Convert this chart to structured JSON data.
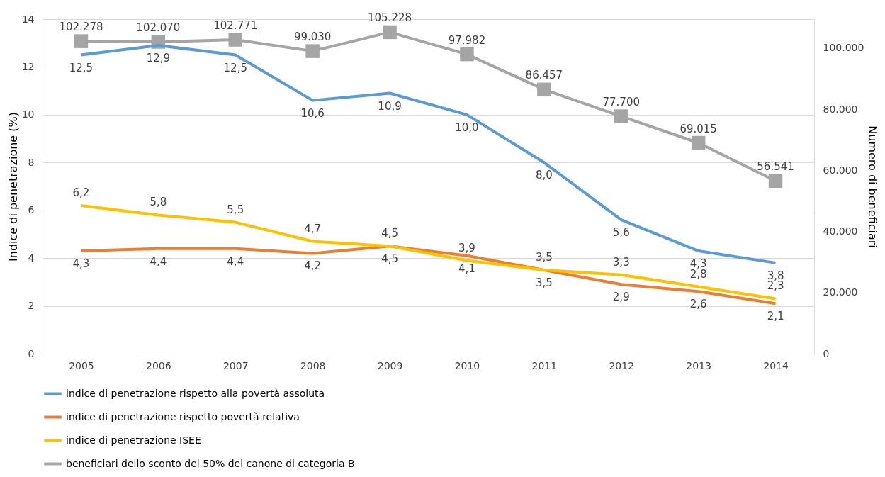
{
  "chart_data": {
    "type": "line",
    "categories": [
      "2005",
      "2006",
      "2007",
      "2008",
      "2009",
      "2010",
      "2011",
      "2012",
      "2013",
      "2014"
    ],
    "ylabel": "Indice di penetrazione (%)",
    "y2label": "Numero di beneficiari",
    "ylim": [
      0,
      14
    ],
    "yticks": [
      0,
      2,
      4,
      6,
      8,
      10,
      12,
      14
    ],
    "y2lim": [
      0,
      109500
    ],
    "y2ticks": [
      {
        "value": 0,
        "label": "0"
      },
      {
        "value": 20000,
        "label": "20.000"
      },
      {
        "value": 40000,
        "label": "40.000"
      },
      {
        "value": 60000,
        "label": "60.000"
      },
      {
        "value": 80000,
        "label": "80.000"
      },
      {
        "value": 100000,
        "label": "100.000"
      }
    ],
    "grid": "y",
    "legend": "bottom left",
    "series": [
      {
        "name": "indice di penetrazione rispetto alla povertà assoluta",
        "color": "#5b9bd5",
        "marker": "none",
        "values": [
          12.5,
          12.9,
          12.5,
          10.6,
          10.9,
          10.0,
          8.0,
          5.6,
          4.3,
          3.8
        ],
        "value_labels": [
          "12,5",
          "12,9",
          "12,5",
          "10,6",
          "10,9",
          "10,0",
          "8,0",
          "5,6",
          "4,3",
          "3,8"
        ]
      },
      {
        "name": "indice di penetrazione rispetto povertà relativa",
        "color": "#ed7d31",
        "marker": "none",
        "values": [
          4.3,
          4.4,
          4.4,
          4.2,
          4.5,
          4.1,
          3.5,
          2.9,
          2.6,
          2.1
        ],
        "value_labels": [
          "4,3",
          "4,4",
          "4,4",
          "4,2",
          "4,5",
          "4,1",
          "3,5",
          "2,9",
          "2,6",
          "2,1"
        ]
      },
      {
        "name": "indice di penetrazione ISEE",
        "color": "#ffc000",
        "marker": "none",
        "values": [
          6.2,
          5.8,
          5.5,
          4.7,
          4.5,
          3.9,
          3.5,
          3.3,
          2.8,
          2.3
        ],
        "value_labels": [
          "6,2",
          "5,8",
          "5,5",
          "4,7",
          "4,5",
          "3,9",
          "3,5",
          "3,3",
          "2,8",
          "2,3"
        ]
      },
      {
        "name": "beneficiari dello sconto del 50% del canone di categoria B",
        "color": "#a5a5a5",
        "marker": "square",
        "axis": "y2",
        "values": [
          102278,
          102070,
          102771,
          99030,
          105228,
          97982,
          86457,
          77700,
          69015,
          56541
        ],
        "value_labels": [
          "102.278",
          "102.070",
          "102.771",
          "99.030",
          "105.228",
          "97.982",
          "86.457",
          "77.700",
          "69.015",
          "56.541"
        ]
      }
    ]
  }
}
